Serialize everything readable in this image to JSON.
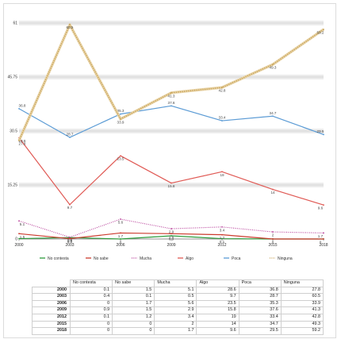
{
  "chart_data": {
    "type": "line",
    "x": [
      "2000",
      "2003",
      "2006",
      "2009",
      "2012",
      "2015",
      "2018"
    ],
    "y_ticks": [
      "61",
      "45.75",
      "30.5",
      "15.25",
      "0"
    ],
    "ylim": [
      0,
      61
    ],
    "grid": true,
    "legend_position": "bottom",
    "series": [
      {
        "name": "No contesta",
        "color": "#2e9b3c",
        "style": "solid",
        "values": [
          0.1,
          0.4,
          0,
          0.9,
          0.1,
          0,
          0
        ]
      },
      {
        "name": "No sabe",
        "color": "#cc3b2e",
        "style": "solid",
        "values": [
          1.5,
          0.1,
          1.7,
          1.5,
          1.2,
          0,
          0
        ]
      },
      {
        "name": "Mucha",
        "color": "#b8409a",
        "style": "dotted",
        "values": [
          5.1,
          0.5,
          5.6,
          2.9,
          3.4,
          2,
          1.7
        ]
      },
      {
        "name": "Algo",
        "color": "#e05a55",
        "style": "solid",
        "values": [
          28.6,
          9.7,
          23.5,
          15.8,
          19,
          14,
          9.6
        ]
      },
      {
        "name": "Poca",
        "color": "#5b9bd5",
        "style": "solid",
        "values": [
          36.8,
          28.7,
          35.3,
          37.6,
          33.4,
          34.7,
          29.5
        ]
      },
      {
        "name": "Ninguna",
        "color": "#c8a45a",
        "style": "dotted",
        "values": [
          27.8,
          60.5,
          33.9,
          41.3,
          42.8,
          49.3,
          59.2
        ]
      }
    ],
    "data_labels": {
      "No contesta": [
        "",
        "0.4",
        "0",
        "0.9",
        "0.1",
        "",
        ""
      ],
      "No sabe": [
        "1.5",
        "0.1",
        "1.7",
        "1.5",
        "1.2",
        "0",
        "0"
      ],
      "Mucha": [
        "5.1",
        "0.5",
        "5.6",
        "2.9",
        "3.4",
        "2",
        "1.7"
      ],
      "Algo": [
        "28.6",
        "9.7",
        "23.5",
        "15.8",
        "19",
        "14",
        "9.6"
      ],
      "Poca": [
        "36.8",
        "28.7",
        "35.3",
        "37.6",
        "33.4",
        "34.7",
        "29.5"
      ],
      "Ninguna": [
        "27.8",
        "60.5",
        "33.9",
        "41.3",
        "42.8",
        "49.3",
        "59.2"
      ]
    }
  },
  "table": {
    "headers": [
      "No contesta",
      "No sabe",
      "Mucha",
      "Algo",
      "Poca",
      "Ninguna"
    ],
    "rows": [
      {
        "year": "2000",
        "cells": [
          "0.1",
          "1.5",
          "5.1",
          "28.6",
          "36.8",
          "27.8"
        ]
      },
      {
        "year": "2003",
        "cells": [
          "0.4",
          "0.1",
          "0.5",
          "9.7",
          "28.7",
          "60.5"
        ]
      },
      {
        "year": "2006",
        "cells": [
          "0",
          "1.7",
          "5.6",
          "23.5",
          "35.3",
          "33.9"
        ]
      },
      {
        "year": "2009",
        "cells": [
          "0.9",
          "1.5",
          "2.9",
          "15.8",
          "37.6",
          "41.3"
        ]
      },
      {
        "year": "2012",
        "cells": [
          "0.1",
          "1.2",
          "3.4",
          "19",
          "33.4",
          "42.8"
        ]
      },
      {
        "year": "2015",
        "cells": [
          "0",
          "0",
          "2",
          "14",
          "34.7",
          "49.3"
        ]
      },
      {
        "year": "2018",
        "cells": [
          "0",
          "0",
          "1.7",
          "9.6",
          "29.5",
          "59.2"
        ]
      }
    ]
  }
}
